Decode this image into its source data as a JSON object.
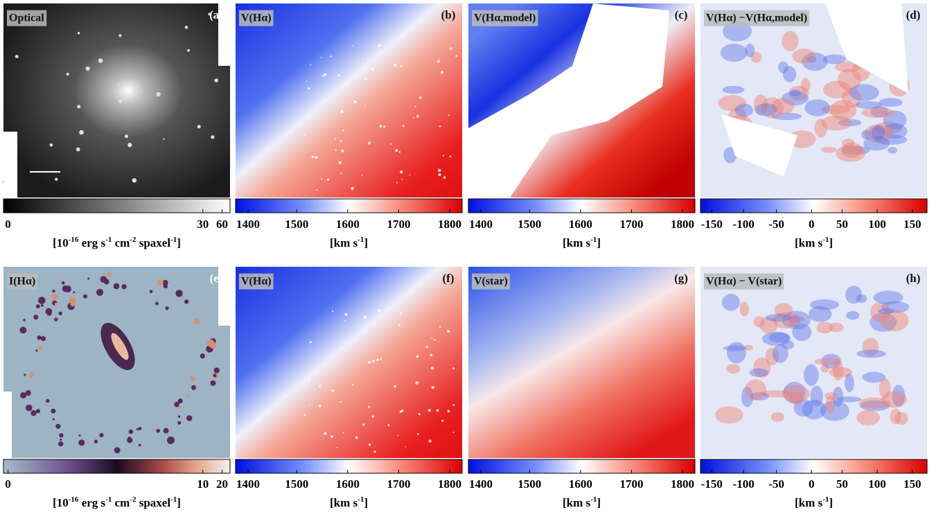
{
  "panels": [
    {
      "label": "Optical",
      "letter": "(a)",
      "colorbar_ticks": [
        "0",
        "30",
        "60"
      ],
      "unit": [
        "[10",
        "-16",
        " erg s",
        "-1",
        " cm",
        "-2",
        " spaxel",
        "-1",
        "]"
      ]
    },
    {
      "label": "V(Hα)",
      "letter": "(b)",
      "colorbar_ticks": [
        "1400",
        "1500",
        "1600",
        "1700",
        "1800"
      ],
      "unit": [
        "[km s",
        "-1",
        "]"
      ]
    },
    {
      "label": "V(Hα,model)",
      "letter": "(c)",
      "colorbar_ticks": [
        "1400",
        "1500",
        "1600",
        "1700",
        "1800"
      ],
      "unit": [
        "[km s",
        "-1",
        "]"
      ]
    },
    {
      "label": "V(Hα) −V(Hα,model)",
      "letter": "(d)",
      "colorbar_ticks": [
        "-150",
        "-100",
        "-50",
        "0",
        "50",
        "100",
        "150"
      ],
      "unit": [
        "[km s",
        "-1",
        "]"
      ]
    },
    {
      "label": "I(Hα)",
      "letter": "(e)",
      "colorbar_ticks": [
        "0",
        "10",
        "20"
      ],
      "unit": [
        "[10",
        "-16",
        " erg s",
        "-1",
        " cm",
        "-2",
        " spaxel",
        "-1",
        "]"
      ]
    },
    {
      "label": "V(Hα)",
      "letter": "(f)",
      "colorbar_ticks": [
        "1400",
        "1500",
        "1600",
        "1700",
        "1800"
      ],
      "unit": [
        "[km s",
        "-1",
        "]"
      ]
    },
    {
      "label": "V(star)",
      "letter": "(g)",
      "colorbar_ticks": [
        "1400",
        "1500",
        "1600",
        "1700",
        "1800"
      ],
      "unit": [
        "[km s",
        "-1",
        "]"
      ]
    },
    {
      "label": "V(Hα) − V(star)",
      "letter": "(h)",
      "colorbar_ticks": [
        "-150",
        "-100",
        "-50",
        "0",
        "50",
        "100",
        "150"
      ],
      "unit": [
        "[km s",
        "-1",
        "]"
      ]
    }
  ]
}
